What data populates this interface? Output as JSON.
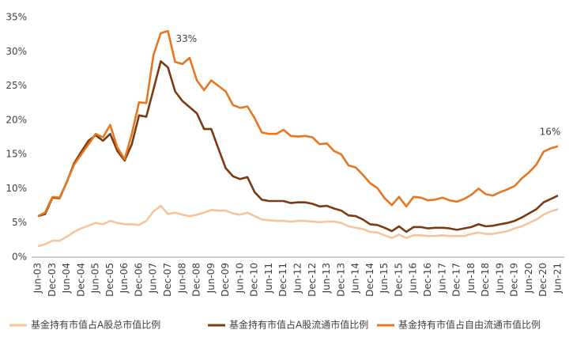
{
  "chart_data": {
    "type": "line",
    "categories": [
      "Jun-03",
      null,
      "Dec-03",
      null,
      "Jun-04",
      null,
      "Dec-04",
      null,
      "Jun-05",
      null,
      "Dec-05",
      null,
      "Jun-06",
      null,
      "Dec-06",
      null,
      "Jun-07",
      null,
      "Dec-07",
      null,
      "Jun-08",
      null,
      "Dec-08",
      null,
      "Jun-09",
      null,
      "Dec-09",
      null,
      "Jun-10",
      null,
      "Dec-10",
      null,
      "Jun-11",
      null,
      "Dec-11",
      null,
      "Jun-12",
      null,
      "Dec-12",
      null,
      "Jun-13",
      null,
      "Dec-13",
      null,
      "Jun-14",
      null,
      "Dec-14",
      null,
      "Jun-15",
      null,
      "Dec-15",
      null,
      "Jun-16",
      null,
      "Dec-16",
      null,
      "Jun-17",
      null,
      "Dec-17",
      null,
      "Jun-18",
      null,
      "Dec-18",
      null,
      "Jun-19",
      null,
      "Dec-19",
      null,
      "Jun-20",
      null,
      "Dec-20",
      null,
      "Jun-21"
    ],
    "series": [
      {
        "name": "基金持有市值占A股总市值比例",
        "color": "#f7c49a",
        "values": [
          1.6,
          1.9,
          2.4,
          2.4,
          3,
          3.7,
          4.2,
          4.6,
          5,
          4.8,
          5.3,
          5,
          4.8,
          4.8,
          4.7,
          5.3,
          6.7,
          7.5,
          6.3,
          6.5,
          6.2,
          6,
          6.2,
          6.5,
          6.9,
          6.8,
          6.8,
          6.4,
          6.2,
          6.5,
          6,
          5.5,
          5.4,
          5.3,
          5.3,
          5.2,
          5.3,
          5.3,
          5.2,
          5.1,
          5.2,
          5.2,
          5,
          4.5,
          4.3,
          4.1,
          3.7,
          3.6,
          3.2,
          2.8,
          3.3,
          2.8,
          3.2,
          3.2,
          3.1,
          3.1,
          3.2,
          3.1,
          3.1,
          3.1,
          3.4,
          3.6,
          3.4,
          3.4,
          3.6,
          3.8,
          4.2,
          4.5,
          5,
          5.5,
          6.2,
          6.7,
          7
        ]
      },
      {
        "name": "基金持有市值占A股流通市值比例",
        "color": "#7a3b10",
        "values": [
          6.0,
          6.3,
          8.7,
          8.6,
          11,
          13.7,
          15.4,
          17,
          17.8,
          17,
          18,
          15.5,
          14.1,
          16.5,
          20.7,
          20.5,
          24.5,
          28.6,
          27.7,
          24.2,
          22.8,
          21.9,
          21,
          18.7,
          18.7,
          15.8,
          13,
          11.8,
          11.4,
          11.7,
          9.5,
          8.4,
          8.2,
          8.2,
          8.2,
          7.9,
          8,
          8,
          7.8,
          7.4,
          7.5,
          7.1,
          6.8,
          6.1,
          6,
          5.5,
          4.8,
          4.7,
          4.3,
          3.8,
          4.5,
          3.7,
          4.4,
          4.4,
          4.2,
          4.3,
          4.3,
          4.2,
          4,
          4.2,
          4.4,
          4.8,
          4.5,
          4.6,
          4.8,
          5,
          5.3,
          5.8,
          6.4,
          7,
          8,
          8.5,
          9
        ]
      },
      {
        "name": "基金持有市值占自由流通市值比例",
        "color": "#e6761f",
        "values": [
          6.0,
          6.5,
          8.8,
          8.7,
          11,
          13.5,
          15,
          16.5,
          18,
          17.5,
          19.3,
          16,
          14.3,
          18,
          22.6,
          22.5,
          29.5,
          32.7,
          33,
          28.5,
          28.2,
          29.1,
          25.8,
          24.4,
          25.8,
          25,
          24.2,
          22.2,
          21.8,
          22,
          20.3,
          18.2,
          18,
          18,
          18.6,
          17.7,
          17.6,
          17.7,
          17.5,
          16.5,
          16.6,
          15.5,
          15,
          13.4,
          13.1,
          12,
          10.8,
          10.1,
          8.6,
          7.6,
          8.8,
          7.4,
          8.8,
          8.7,
          8.3,
          8.4,
          8.7,
          8.3,
          8.1,
          8.5,
          9.1,
          10,
          9.2,
          9,
          9.5,
          9.9,
          10.4,
          11.5,
          12.4,
          13.5,
          15.4,
          15.9,
          16.2
        ]
      }
    ],
    "ylim": [
      0,
      35
    ],
    "yticks": [
      {
        "value": 0,
        "label": "0%"
      },
      {
        "value": 5,
        "label": "5%"
      },
      {
        "value": 10,
        "label": "10%"
      },
      {
        "value": 15,
        "label": "15%"
      },
      {
        "value": 20,
        "label": "20%"
      },
      {
        "value": 25,
        "label": "25%"
      },
      {
        "value": 30,
        "label": "30%"
      },
      {
        "value": 35,
        "label": "35%"
      }
    ],
    "annotations": [
      "33%",
      "16%"
    ],
    "grid": false
  }
}
